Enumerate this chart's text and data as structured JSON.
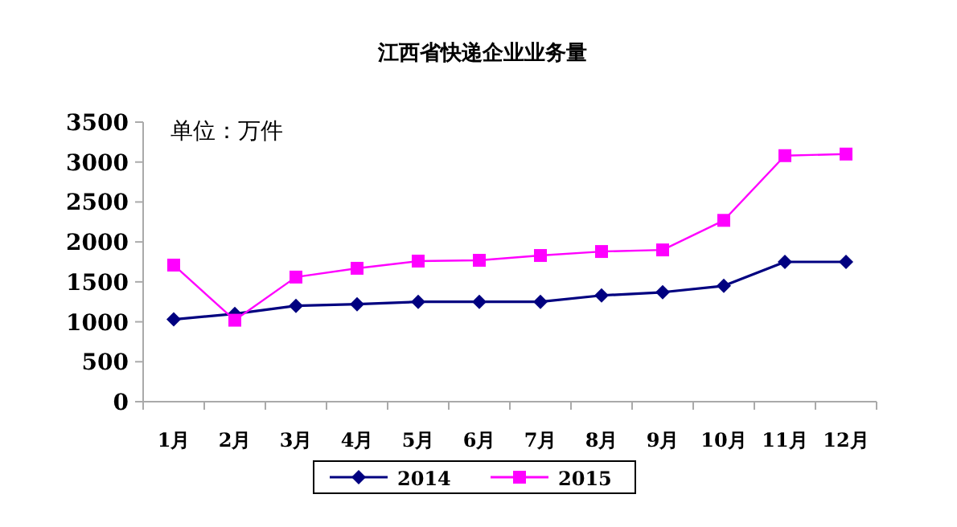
{
  "chart_data": {
    "type": "line",
    "title": "江西省快递企业业务量",
    "annotations": [
      "单位：万件"
    ],
    "categories": [
      "1月",
      "2月",
      "3月",
      "4月",
      "5月",
      "6月",
      "7月",
      "8月",
      "9月",
      "10月",
      "11月",
      "12月"
    ],
    "series": [
      {
        "name": "2014",
        "color": "#000080",
        "marker": "diamond",
        "values": [
          1030,
          1100,
          1200,
          1220,
          1250,
          1250,
          1250,
          1330,
          1370,
          1450,
          1750,
          1750
        ]
      },
      {
        "name": "2015",
        "color": "#ff00ff",
        "marker": "square",
        "values": [
          1710,
          1020,
          1560,
          1670,
          1760,
          1770,
          1830,
          1880,
          1900,
          2270,
          3080,
          3100
        ]
      }
    ],
    "ylim": [
      0,
      3500
    ],
    "yticks": [
      0,
      500,
      1000,
      1500,
      2000,
      2500,
      3000,
      3500
    ],
    "grid": false,
    "legend": "bottom"
  }
}
